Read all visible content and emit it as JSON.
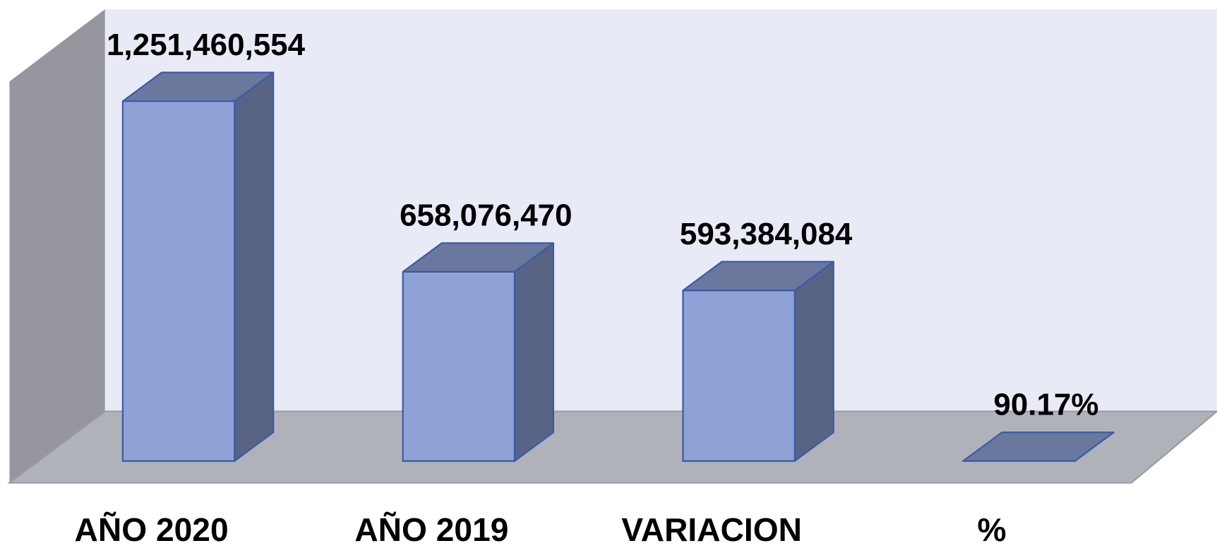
{
  "chart_data": {
    "type": "bar3d",
    "categories": [
      "AÑO 2020",
      "AÑO 2019",
      "VARIACION",
      "%"
    ],
    "values": [
      1251460554,
      658076470,
      593384084,
      90.17
    ],
    "value_labels": [
      "1,251,460,554",
      "658,076,470",
      "593,384,084",
      "90.17%"
    ],
    "color": "#8fa2d6",
    "ylim": [
      0,
      1320000000
    ]
  }
}
